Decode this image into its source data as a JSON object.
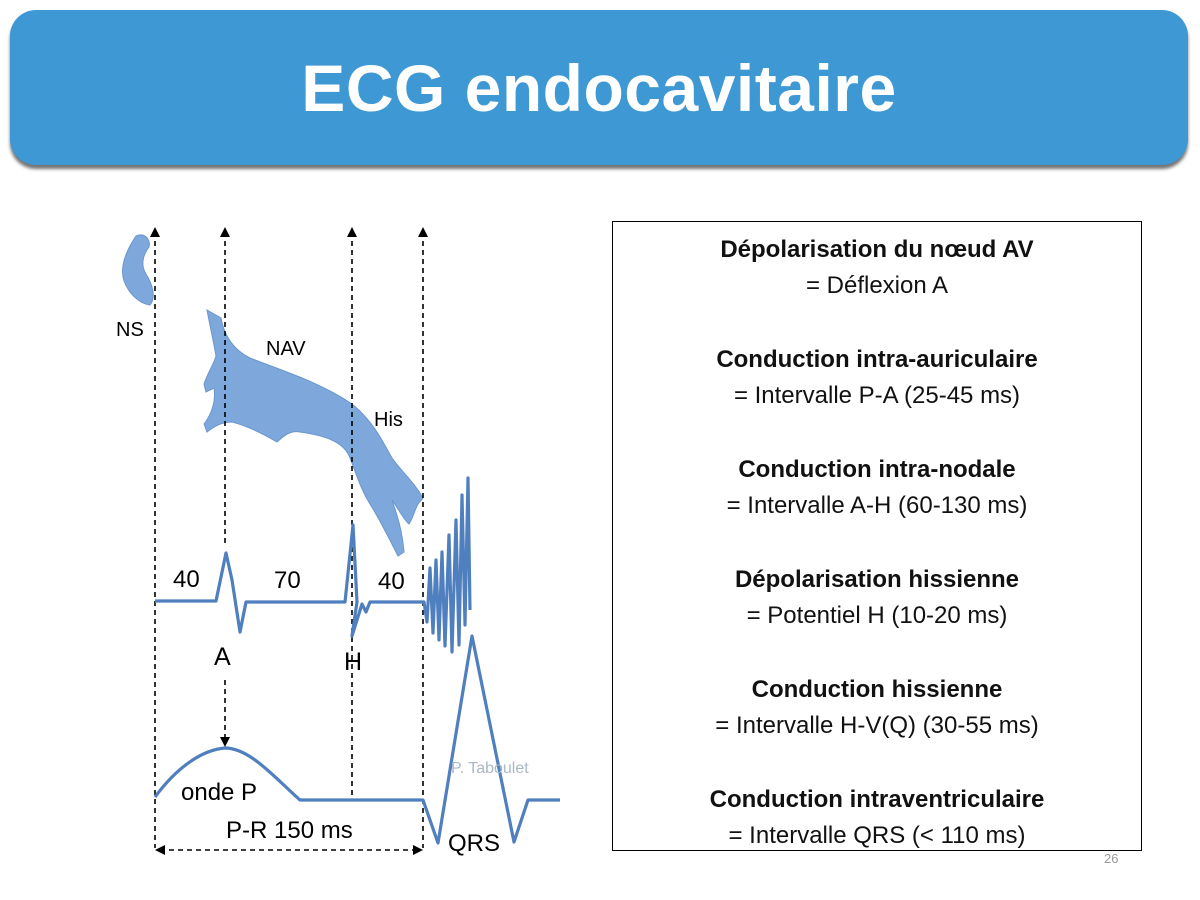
{
  "slide": {
    "title": "ECG endocavitaire",
    "number": "26"
  },
  "diagram": {
    "labels": {
      "ns": "NS",
      "nav": "NAV",
      "his": "His",
      "a": "A",
      "h": "H",
      "qrs": "QRS",
      "onde_p": "onde P",
      "pr_interval": "P-R 150 ms",
      "credit": "P. Taboulet"
    },
    "intervals": {
      "pa": "40",
      "ah": "70",
      "hv": "40"
    },
    "colors": {
      "anatomy_fill": "#7ea8dc",
      "trace": "#4f7fbe",
      "arrow": "#000000",
      "credit": "#aab8c8"
    }
  },
  "info": {
    "items": [
      {
        "heading": "Dépolarisation du nœud AV",
        "detail": "= Déflexion A"
      },
      {
        "heading": "Conduction intra-auriculaire",
        "detail": "= Intervalle P-A (25-45 ms)"
      },
      {
        "heading": "Conduction intra-nodale",
        "detail": "= Intervalle A-H (60-130 ms)"
      },
      {
        "heading": "Dépolarisation hissienne",
        "detail": "= Potentiel H (10-20 ms)"
      },
      {
        "heading": "Conduction hissienne",
        "detail": "= Intervalle H-V(Q) (30-55 ms)"
      },
      {
        "heading": "Conduction intraventriculaire",
        "detail": "= Intervalle QRS (< 110 ms)"
      }
    ]
  }
}
